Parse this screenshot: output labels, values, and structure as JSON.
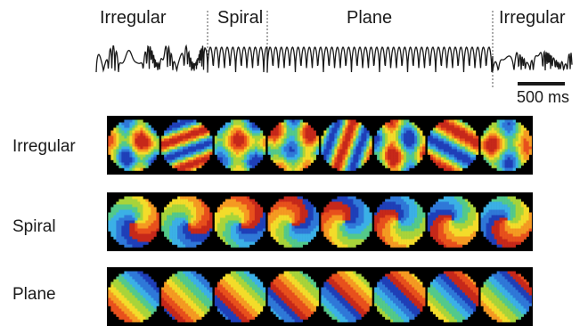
{
  "trace": {
    "segments": [
      {
        "label": "Irregular",
        "pattern": "irregular"
      },
      {
        "label": "Spiral",
        "pattern": "regular"
      },
      {
        "label": "Plane",
        "pattern": "regular"
      },
      {
        "label": "Irregular",
        "pattern": "irregular-low"
      }
    ],
    "scale_bar_label": "500 ms"
  },
  "rows": [
    {
      "label": "Irregular",
      "frames": [
        {
          "angle": 30,
          "phase": 0.0,
          "freq": 1.6,
          "mode": "blotch"
        },
        {
          "angle": 70,
          "phase": 0.55,
          "freq": 1.8,
          "mode": "band"
        },
        {
          "angle": 10,
          "phase": 0.3,
          "freq": 1.4,
          "mode": "blotch"
        },
        {
          "angle": 120,
          "phase": 0.75,
          "freq": 1.5,
          "mode": "blotch"
        },
        {
          "angle": 200,
          "phase": 0.2,
          "freq": 1.7,
          "mode": "band"
        },
        {
          "angle": 250,
          "phase": 0.45,
          "freq": 1.6,
          "mode": "blotch"
        },
        {
          "angle": 300,
          "phase": 0.9,
          "freq": 1.3,
          "mode": "band"
        },
        {
          "angle": 340,
          "phase": 0.65,
          "freq": 1.5,
          "mode": "blotch"
        }
      ]
    },
    {
      "label": "Spiral",
      "frames": [
        {
          "angle": 0,
          "phase": 0.0,
          "freq": 1.0,
          "mode": "spiral"
        },
        {
          "angle": 45,
          "phase": 0.12,
          "freq": 1.0,
          "mode": "spiral"
        },
        {
          "angle": 90,
          "phase": 0.25,
          "freq": 1.0,
          "mode": "spiral"
        },
        {
          "angle": 135,
          "phase": 0.37,
          "freq": 1.0,
          "mode": "spiral"
        },
        {
          "angle": 180,
          "phase": 0.5,
          "freq": 1.0,
          "mode": "spiral"
        },
        {
          "angle": 225,
          "phase": 0.62,
          "freq": 1.0,
          "mode": "spiral"
        },
        {
          "angle": 270,
          "phase": 0.75,
          "freq": 1.0,
          "mode": "spiral"
        },
        {
          "angle": 315,
          "phase": 0.87,
          "freq": 1.0,
          "mode": "spiral"
        }
      ]
    },
    {
      "label": "Plane",
      "frames": [
        {
          "angle": 135,
          "phase": 0.0,
          "freq": 1.0,
          "mode": "plane"
        },
        {
          "angle": 135,
          "phase": 0.12,
          "freq": 1.0,
          "mode": "plane"
        },
        {
          "angle": 135,
          "phase": 0.25,
          "freq": 1.0,
          "mode": "plane"
        },
        {
          "angle": 135,
          "phase": 0.37,
          "freq": 1.0,
          "mode": "plane"
        },
        {
          "angle": 135,
          "phase": 0.5,
          "freq": 1.0,
          "mode": "plane"
        },
        {
          "angle": 135,
          "phase": 0.62,
          "freq": 1.0,
          "mode": "plane"
        },
        {
          "angle": 135,
          "phase": 0.75,
          "freq": 1.0,
          "mode": "plane"
        },
        {
          "angle": 135,
          "phase": 0.87,
          "freq": 1.0,
          "mode": "plane"
        }
      ]
    }
  ],
  "colormap": [
    "#1f3fb8",
    "#2f78d8",
    "#3bb0e6",
    "#53c98a",
    "#a8d43a",
    "#f3dc2a",
    "#f59a22",
    "#e8501c",
    "#c6281a"
  ],
  "colors": {
    "trace": "#1a1a1a",
    "frame_border": "#000000",
    "divider": "#555555"
  }
}
